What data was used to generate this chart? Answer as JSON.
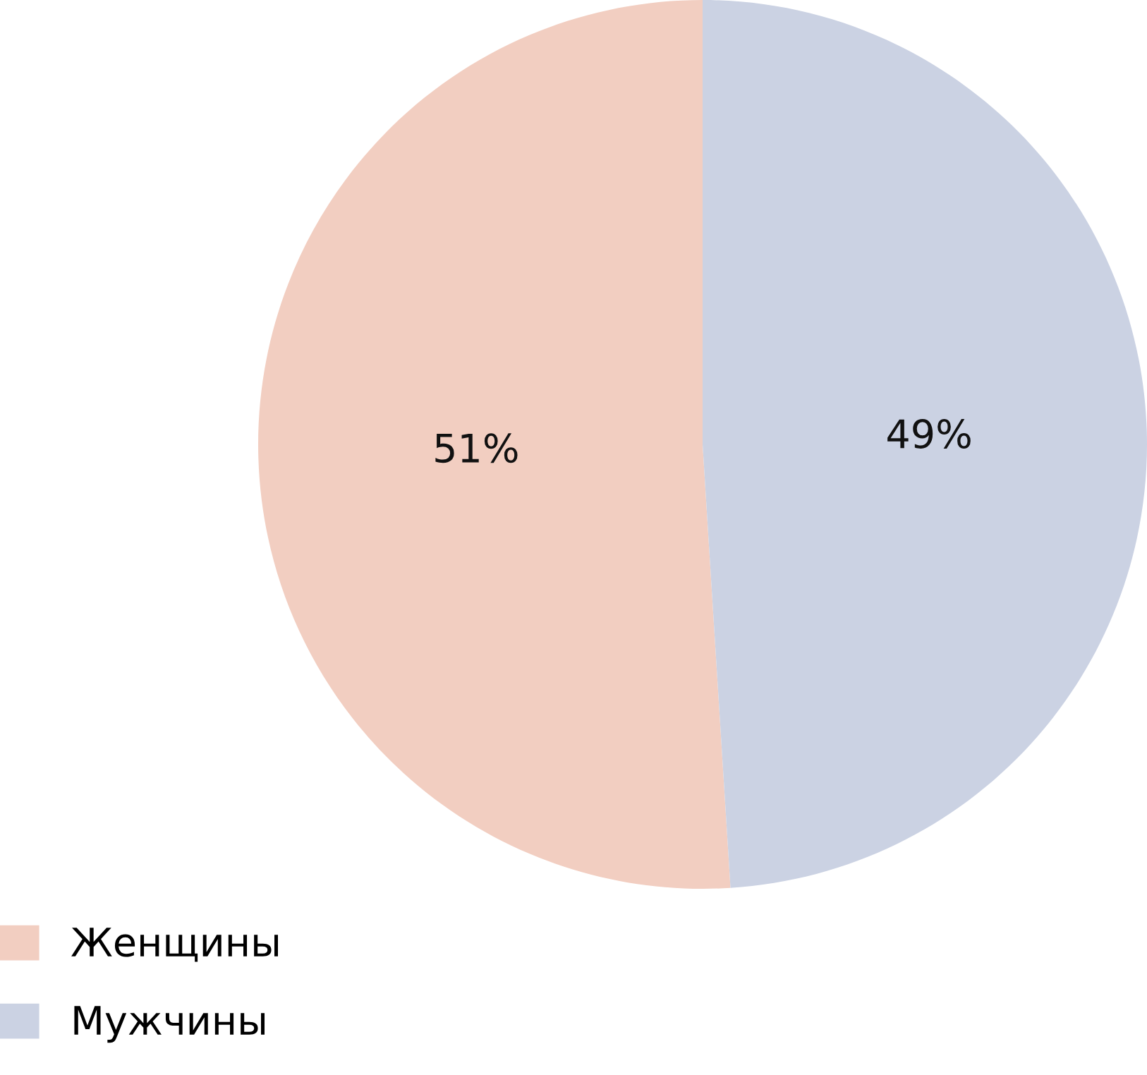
{
  "chart_data": {
    "type": "pie",
    "categories": [
      "Женщины",
      "Мужчины"
    ],
    "values": [
      51,
      49
    ],
    "colors": [
      "#f2cec1",
      "#cbd2e3"
    ],
    "value_labels": [
      "51%",
      "49%"
    ],
    "legend": "bottom left"
  }
}
